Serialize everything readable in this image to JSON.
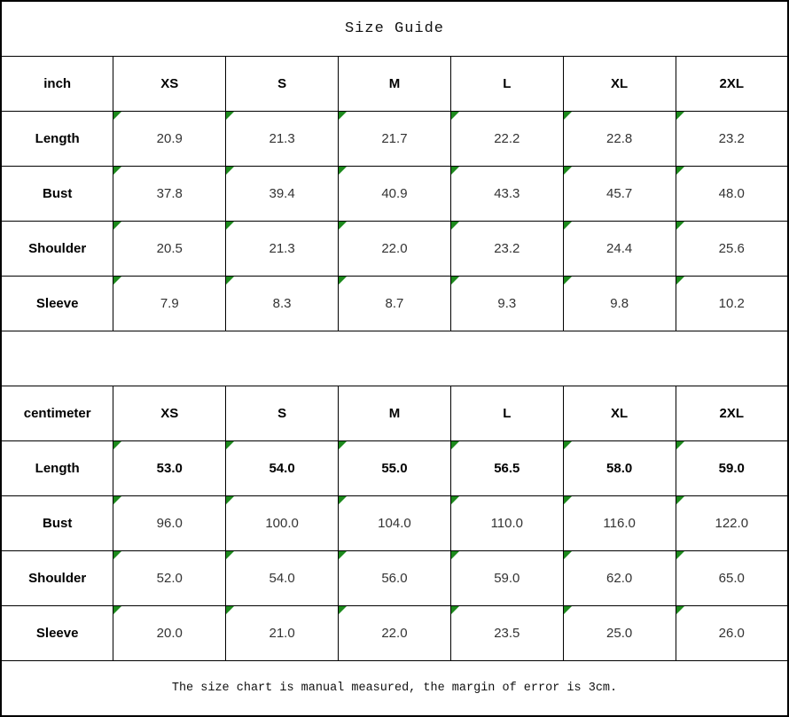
{
  "title": "Size Guide",
  "footer_note": "The size chart is manual measured, the margin of error is 3cm.",
  "colors": {
    "border": "#000000",
    "background": "#ffffff",
    "corner_flag_green": "#1c8a1c",
    "value_text": "#333333",
    "header_text": "#000000"
  },
  "chart_data": [
    {
      "type": "table",
      "unit": "inch",
      "columns": [
        "inch",
        "XS",
        "S",
        "M",
        "L",
        "XL",
        "2XL"
      ],
      "rows": [
        {
          "label": "Length",
          "values": [
            "20.9",
            "21.3",
            "21.7",
            "22.2",
            "22.8",
            "23.2"
          ],
          "bold": false
        },
        {
          "label": "Bust",
          "values": [
            "37.8",
            "39.4",
            "40.9",
            "43.3",
            "45.7",
            "48.0"
          ],
          "bold": false
        },
        {
          "label": "Shoulder",
          "values": [
            "20.5",
            "21.3",
            "22.0",
            "23.2",
            "24.4",
            "25.6"
          ],
          "bold": false
        },
        {
          "label": "Sleeve",
          "values": [
            "7.9",
            "8.3",
            "8.7",
            "9.3",
            "9.8",
            "10.2"
          ],
          "bold": false
        }
      ]
    },
    {
      "type": "table",
      "unit": "centimeter",
      "columns": [
        "centimeter",
        "XS",
        "S",
        "M",
        "L",
        "XL",
        "2XL"
      ],
      "rows": [
        {
          "label": "Length",
          "values": [
            "53.0",
            "54.0",
            "55.0",
            "56.5",
            "58.0",
            "59.0"
          ],
          "bold": true
        },
        {
          "label": "Bust",
          "values": [
            "96.0",
            "100.0",
            "104.0",
            "110.0",
            "116.0",
            "122.0"
          ],
          "bold": false
        },
        {
          "label": "Shoulder",
          "values": [
            "52.0",
            "54.0",
            "56.0",
            "59.0",
            "62.0",
            "65.0"
          ],
          "bold": false
        },
        {
          "label": "Sleeve",
          "values": [
            "20.0",
            "21.0",
            "22.0",
            "23.5",
            "25.0",
            "26.0"
          ],
          "bold": false
        }
      ]
    }
  ]
}
